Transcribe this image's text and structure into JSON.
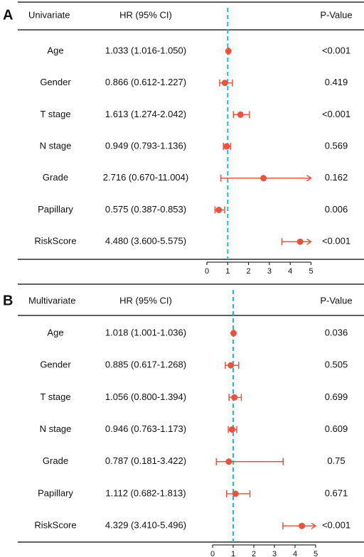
{
  "chart_data": [
    {
      "type": "forest",
      "panel_label": "A",
      "columns": [
        "Univariate",
        "HR (95% CI)",
        "P-Value"
      ],
      "categories": [
        "Age",
        "Gender",
        "T stage",
        "N stage",
        "Grade",
        "Papillary",
        "RiskScore"
      ],
      "values": [
        1.033,
        0.866,
        1.613,
        0.949,
        2.716,
        0.575,
        4.48
      ],
      "lower": [
        1.016,
        0.612,
        1.274,
        0.793,
        0.67,
        0.387,
        3.6
      ],
      "upper": [
        1.05,
        1.227,
        2.042,
        1.136,
        11.004,
        0.853,
        5.575
      ],
      "value_labels": [
        "1.033 (1.016-1.050)",
        "0.866 (0.612-1.227)",
        "1.613 (1.274-2.042)",
        "0.949 (0.793-1.136)",
        "2.716 (0.670-11.004)",
        "0.575 (0.387-0.853)",
        "4.480 (3.600-5.575)"
      ],
      "p_values": [
        "<0.001",
        "0.419",
        "<0.001",
        "0.569",
        "0.162",
        "0.006",
        "<0.001"
      ],
      "xlim": [
        0,
        5
      ],
      "xticks": [
        0,
        1,
        2,
        3,
        4,
        5
      ],
      "ref_line": 1,
      "color": "#e8533f",
      "ref_color": "#29b6d6"
    },
    {
      "type": "forest",
      "panel_label": "B",
      "columns": [
        "Multivariate",
        "HR (95% CI)",
        "P-Value"
      ],
      "categories": [
        "Age",
        "Gender",
        "T stage",
        "N stage",
        "Grade",
        "Papillary",
        "RiskScore"
      ],
      "values": [
        1.018,
        0.885,
        1.056,
        0.946,
        0.787,
        1.112,
        4.329
      ],
      "lower": [
        1.001,
        0.617,
        0.8,
        0.763,
        0.181,
        0.682,
        3.41
      ],
      "upper": [
        1.036,
        1.268,
        1.394,
        1.173,
        3.422,
        1.813,
        5.496
      ],
      "value_labels": [
        "1.018 (1.001-1.036)",
        "0.885 (0.617-1.268)",
        "1.056 (0.800-1.394)",
        "0.946 (0.763-1.173)",
        "0.787 (0.181-3.422)",
        "1.112 (0.682-1.813)",
        "4.329 (3.410-5.496)"
      ],
      "p_values": [
        "0.036",
        "0.505",
        "0.699",
        "0.609",
        "0.75",
        "0.671",
        "<0.001"
      ],
      "xlim": [
        0,
        5
      ],
      "xticks": [
        0,
        1,
        2,
        3,
        4,
        5
      ],
      "ref_line": 1,
      "color": "#e8533f",
      "ref_color": "#29b6d6"
    }
  ]
}
